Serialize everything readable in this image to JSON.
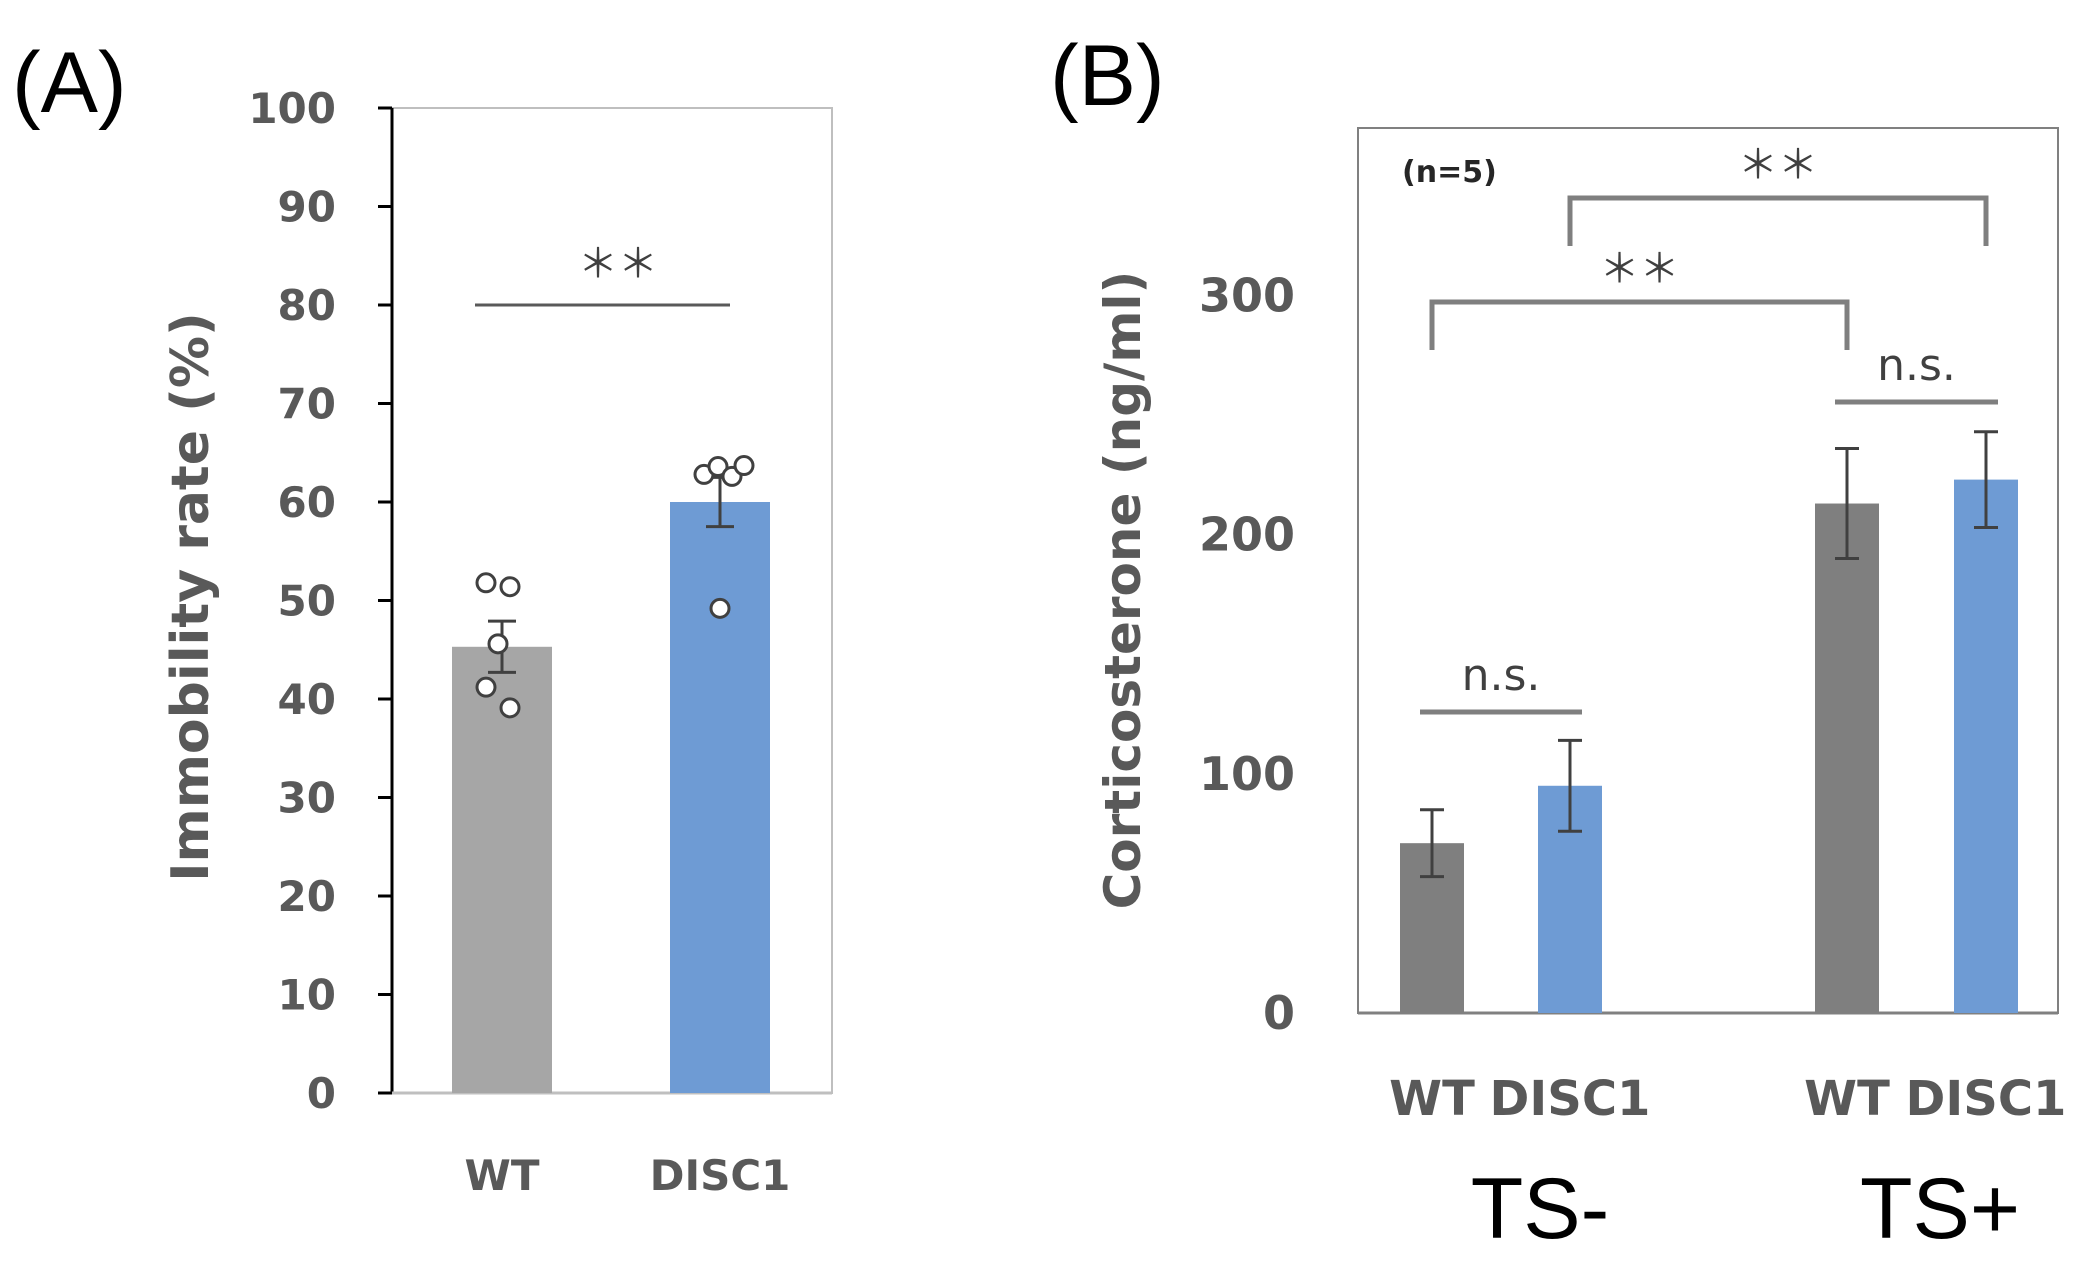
{
  "chart_data": [
    {
      "panel_label": "(A)",
      "type": "bar",
      "categories": [
        "WT",
        "DISC1"
      ],
      "values": [
        45.3,
        60.0
      ],
      "errors": [
        2.6,
        2.5
      ],
      "points": [
        [
          51.8,
          51.4,
          45.6,
          41.2,
          39.1
        ],
        [
          62.8,
          63.6,
          62.6,
          63.7,
          49.2
        ]
      ],
      "colors": [
        "#a6a6a6",
        "#6e9bd4"
      ],
      "ylabel": "Immobility rate (%)",
      "ylim": [
        0,
        100
      ],
      "yticks": [
        "0",
        "10",
        "20",
        "30",
        "40",
        "50",
        "60",
        "70",
        "80",
        "90",
        "100"
      ],
      "significance": [
        {
          "from": 0,
          "to": 1,
          "y": 80,
          "label": "＊＊"
        }
      ]
    },
    {
      "panel_label": "(B)",
      "type": "bar",
      "annotation": "(n=5)",
      "groups": [
        "TS-",
        "TS+"
      ],
      "categories": [
        "WT",
        "DISC1",
        "WT",
        "DISC1"
      ],
      "values": [
        71,
        95,
        213,
        223
      ],
      "errors": [
        14,
        19,
        23,
        20
      ],
      "colors": [
        "#7f7f7f",
        "#6e9bd4",
        "#7f7f7f",
        "#6e9bd4"
      ],
      "ylabel": "Corticosterone (ng/ml)",
      "ylim": [
        0,
        370
      ],
      "yticks": [
        "0",
        "100",
        "200",
        "300"
      ],
      "significance": [
        {
          "from": 0,
          "to": 1,
          "label": "n.s.",
          "style": "line"
        },
        {
          "from": 2,
          "to": 3,
          "label": "n.s.",
          "style": "line"
        },
        {
          "from": 0,
          "to": 2,
          "label": "＊＊",
          "style": "bracket"
        },
        {
          "from": 1,
          "to": 3,
          "label": "＊＊",
          "style": "bracket"
        }
      ]
    }
  ]
}
